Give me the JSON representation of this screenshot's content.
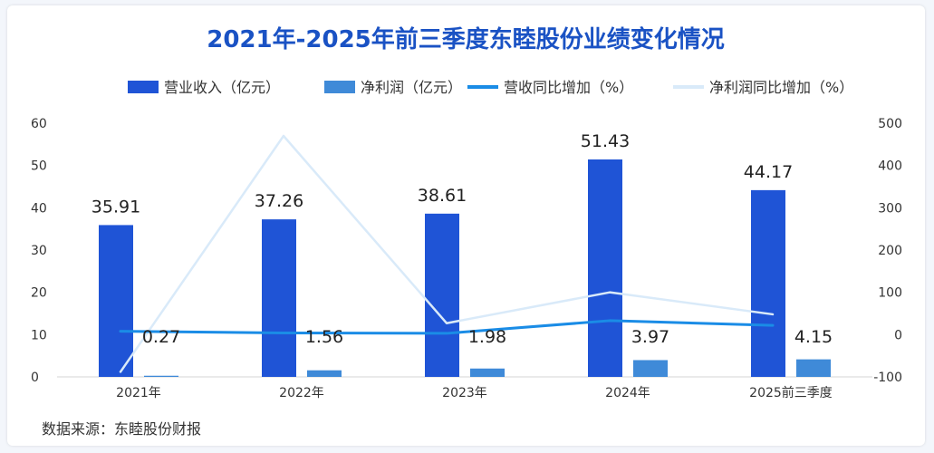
{
  "chart_data": {
    "type": "bar",
    "title": "2021年-2025年前三季度东睦股份业绩变化情况",
    "categories": [
      "2021年",
      "2022年",
      "2023年",
      "2024年",
      "2025前三季度"
    ],
    "series": [
      {
        "name": "营业收入（亿元）",
        "kind": "bar",
        "axis": "left",
        "color": "#1f54d6",
        "values": [
          35.91,
          37.26,
          38.61,
          51.43,
          44.17
        ],
        "labels": [
          "35.91",
          "37.26",
          "38.61",
          "51.43",
          "44.17"
        ]
      },
      {
        "name": "净利润（亿元）",
        "kind": "bar",
        "axis": "left",
        "color": "#3f8ad8",
        "values": [
          0.27,
          1.56,
          1.98,
          3.97,
          4.15
        ],
        "labels": [
          "0.27",
          "1.56",
          "1.98",
          "3.97",
          "4.15"
        ]
      },
      {
        "name": "营收同比增加（%）",
        "kind": "line",
        "axis": "right",
        "color": "#1a8ce6",
        "values": [
          8,
          4,
          3,
          33,
          22
        ]
      },
      {
        "name": "净利润同比增加（%）",
        "kind": "line",
        "axis": "right",
        "color": "#d9eaf9",
        "values": [
          -88,
          470,
          27,
          100,
          48
        ]
      }
    ],
    "ylim_left": [
      0,
      60
    ],
    "yticks_left": [
      "0",
      "10",
      "20",
      "30",
      "40",
      "50",
      "60"
    ],
    "ylim_right": [
      -100,
      500
    ],
    "yticks_right": [
      "-100",
      "0",
      "100",
      "200",
      "300",
      "400",
      "500"
    ],
    "legend": "top",
    "source": "数据来源：东睦股份财报"
  }
}
